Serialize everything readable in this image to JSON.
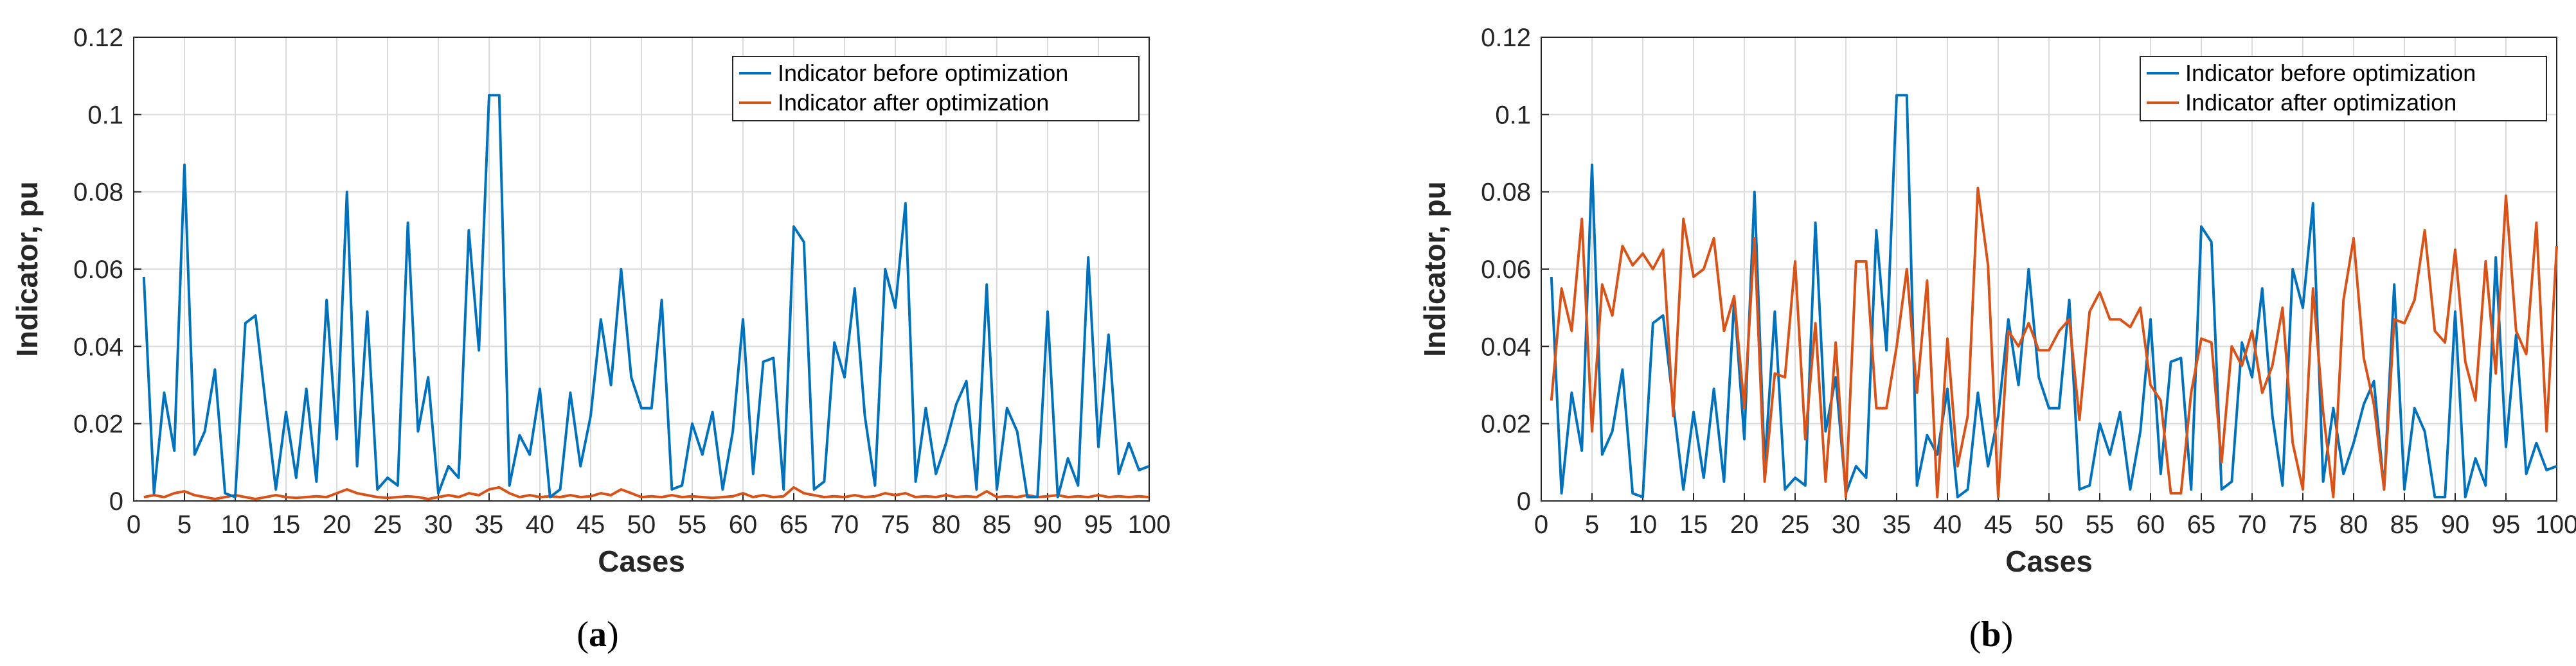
{
  "chart_data": [
    {
      "type": "line",
      "panel_label": "a",
      "xlabel": "Cases",
      "ylabel": "Indicator, pu",
      "xlim": [
        0,
        100
      ],
      "ylim": [
        0,
        0.12
      ],
      "xticks": [
        0,
        5,
        10,
        15,
        20,
        25,
        30,
        35,
        40,
        45,
        50,
        55,
        60,
        65,
        70,
        75,
        80,
        85,
        90,
        95,
        100
      ],
      "yticks": [
        0,
        0.02,
        0.04,
        0.06,
        0.08,
        0.1,
        0.12
      ],
      "ytick_labels": [
        "0",
        "0.02",
        "0.04",
        "0.06",
        "0.08",
        "0.1",
        "0.12"
      ],
      "grid": true,
      "legend_position": "top-right",
      "series": [
        {
          "name": "Indicator before optimization",
          "color": "#0072BD",
          "x": [
            1,
            2,
            3,
            4,
            5,
            6,
            7,
            8,
            9,
            10,
            11,
            12,
            13,
            14,
            15,
            16,
            17,
            18,
            19,
            20,
            21,
            22,
            23,
            24,
            25,
            26,
            27,
            28,
            29,
            30,
            31,
            32,
            33,
            34,
            35,
            36,
            37,
            38,
            39,
            40,
            41,
            42,
            43,
            44,
            45,
            46,
            47,
            48,
            49,
            50,
            51,
            52,
            53,
            54,
            55,
            56,
            57,
            58,
            59,
            60,
            61,
            62,
            63,
            64,
            65,
            66,
            67,
            68,
            69,
            70,
            71,
            72,
            73,
            74,
            75,
            76,
            77,
            78,
            79,
            80,
            81,
            82,
            83,
            84,
            85,
            86,
            87,
            88,
            89,
            90,
            91,
            92,
            93,
            94,
            95,
            96,
            97,
            98,
            99,
            100
          ],
          "values": [
            0.058,
            0.002,
            0.028,
            0.013,
            0.087,
            0.012,
            0.018,
            0.034,
            0.002,
            0.001,
            0.046,
            0.048,
            0.025,
            0.003,
            0.023,
            0.006,
            0.029,
            0.005,
            0.052,
            0.016,
            0.08,
            0.009,
            0.049,
            0.003,
            0.006,
            0.004,
            0.072,
            0.018,
            0.032,
            0.002,
            0.009,
            0.006,
            0.07,
            0.039,
            0.105,
            0.105,
            0.004,
            0.017,
            0.012,
            0.029,
            0.001,
            0.003,
            0.028,
            0.009,
            0.022,
            0.047,
            0.03,
            0.06,
            0.032,
            0.024,
            0.024,
            0.052,
            0.003,
            0.004,
            0.02,
            0.012,
            0.023,
            0.003,
            0.018,
            0.047,
            0.007,
            0.036,
            0.037,
            0.003,
            0.071,
            0.067,
            0.003,
            0.005,
            0.041,
            0.032,
            0.055,
            0.022,
            0.004,
            0.06,
            0.05,
            0.077,
            0.005,
            0.024,
            0.007,
            0.015,
            0.025,
            0.031,
            0.003,
            0.056,
            0.003,
            0.024,
            0.018,
            0.001,
            0.001,
            0.049,
            0.001,
            0.011,
            0.004,
            0.063,
            0.014,
            0.043,
            0.007,
            0.015,
            0.008,
            0.009
          ]
        },
        {
          "name": "Indicator after optimization",
          "color": "#D95319",
          "x": [
            1,
            2,
            3,
            4,
            5,
            6,
            7,
            8,
            9,
            10,
            11,
            12,
            13,
            14,
            15,
            16,
            17,
            18,
            19,
            20,
            21,
            22,
            23,
            24,
            25,
            26,
            27,
            28,
            29,
            30,
            31,
            32,
            33,
            34,
            35,
            36,
            37,
            38,
            39,
            40,
            41,
            42,
            43,
            44,
            45,
            46,
            47,
            48,
            49,
            50,
            51,
            52,
            53,
            54,
            55,
            56,
            57,
            58,
            59,
            60,
            61,
            62,
            63,
            64,
            65,
            66,
            67,
            68,
            69,
            70,
            71,
            72,
            73,
            74,
            75,
            76,
            77,
            78,
            79,
            80,
            81,
            82,
            83,
            84,
            85,
            86,
            87,
            88,
            89,
            90,
            91,
            92,
            93,
            94,
            95,
            96,
            97,
            98,
            99,
            100
          ],
          "values": [
            0.001,
            0.0015,
            0.001,
            0.002,
            0.0025,
            0.0015,
            0.001,
            0.0005,
            0.001,
            0.0015,
            0.001,
            0.0005,
            0.001,
            0.0015,
            0.001,
            0.0008,
            0.001,
            0.0012,
            0.001,
            0.002,
            0.003,
            0.002,
            0.0015,
            0.001,
            0.0008,
            0.001,
            0.0012,
            0.001,
            0.0005,
            0.001,
            0.0015,
            0.001,
            0.002,
            0.0015,
            0.003,
            0.0035,
            0.002,
            0.001,
            0.0015,
            0.001,
            0.0012,
            0.001,
            0.0015,
            0.001,
            0.0012,
            0.002,
            0.0015,
            0.003,
            0.002,
            0.001,
            0.0012,
            0.001,
            0.0015,
            0.001,
            0.0012,
            0.001,
            0.0008,
            0.001,
            0.0012,
            0.002,
            0.001,
            0.0015,
            0.001,
            0.0012,
            0.0035,
            0.002,
            0.0015,
            0.001,
            0.0012,
            0.001,
            0.0015,
            0.001,
            0.0012,
            0.002,
            0.0015,
            0.002,
            0.001,
            0.0012,
            0.001,
            0.0015,
            0.001,
            0.0012,
            0.001,
            0.0025,
            0.001,
            0.0012,
            0.001,
            0.0015,
            0.001,
            0.0012,
            0.0015,
            0.001,
            0.0012,
            0.001,
            0.0015,
            0.001,
            0.0012,
            0.001,
            0.0012,
            0.001
          ]
        }
      ]
    },
    {
      "type": "line",
      "panel_label": "b",
      "xlabel": "Cases",
      "ylabel": "Indicator, pu",
      "xlim": [
        0,
        100
      ],
      "ylim": [
        0,
        0.12
      ],
      "xticks": [
        0,
        5,
        10,
        15,
        20,
        25,
        30,
        35,
        40,
        45,
        50,
        55,
        60,
        65,
        70,
        75,
        80,
        85,
        90,
        95,
        100
      ],
      "yticks": [
        0,
        0.02,
        0.04,
        0.06,
        0.08,
        0.1,
        0.12
      ],
      "ytick_labels": [
        "0",
        "0.02",
        "0.04",
        "0.06",
        "0.08",
        "0.1",
        "0.12"
      ],
      "grid": true,
      "legend_position": "top-right",
      "series": [
        {
          "name": "Indicator before optimization",
          "color": "#0072BD",
          "x": [
            1,
            2,
            3,
            4,
            5,
            6,
            7,
            8,
            9,
            10,
            11,
            12,
            13,
            14,
            15,
            16,
            17,
            18,
            19,
            20,
            21,
            22,
            23,
            24,
            25,
            26,
            27,
            28,
            29,
            30,
            31,
            32,
            33,
            34,
            35,
            36,
            37,
            38,
            39,
            40,
            41,
            42,
            43,
            44,
            45,
            46,
            47,
            48,
            49,
            50,
            51,
            52,
            53,
            54,
            55,
            56,
            57,
            58,
            59,
            60,
            61,
            62,
            63,
            64,
            65,
            66,
            67,
            68,
            69,
            70,
            71,
            72,
            73,
            74,
            75,
            76,
            77,
            78,
            79,
            80,
            81,
            82,
            83,
            84,
            85,
            86,
            87,
            88,
            89,
            90,
            91,
            92,
            93,
            94,
            95,
            96,
            97,
            98,
            99,
            100
          ],
          "values": [
            0.058,
            0.002,
            0.028,
            0.013,
            0.087,
            0.012,
            0.018,
            0.034,
            0.002,
            0.001,
            0.046,
            0.048,
            0.025,
            0.003,
            0.023,
            0.006,
            0.029,
            0.005,
            0.052,
            0.016,
            0.08,
            0.009,
            0.049,
            0.003,
            0.006,
            0.004,
            0.072,
            0.018,
            0.032,
            0.002,
            0.009,
            0.006,
            0.07,
            0.039,
            0.105,
            0.105,
            0.004,
            0.017,
            0.012,
            0.029,
            0.001,
            0.003,
            0.028,
            0.009,
            0.022,
            0.047,
            0.03,
            0.06,
            0.032,
            0.024,
            0.024,
            0.052,
            0.003,
            0.004,
            0.02,
            0.012,
            0.023,
            0.003,
            0.018,
            0.047,
            0.007,
            0.036,
            0.037,
            0.003,
            0.071,
            0.067,
            0.003,
            0.005,
            0.041,
            0.032,
            0.055,
            0.022,
            0.004,
            0.06,
            0.05,
            0.077,
            0.005,
            0.024,
            0.007,
            0.015,
            0.025,
            0.031,
            0.003,
            0.056,
            0.003,
            0.024,
            0.018,
            0.001,
            0.001,
            0.049,
            0.001,
            0.011,
            0.004,
            0.063,
            0.014,
            0.043,
            0.007,
            0.015,
            0.008,
            0.009
          ]
        },
        {
          "name": "Indicator after optimization",
          "color": "#D95319",
          "x": [
            1,
            2,
            3,
            4,
            5,
            6,
            7,
            8,
            9,
            10,
            11,
            12,
            13,
            14,
            15,
            16,
            17,
            18,
            19,
            20,
            21,
            22,
            23,
            24,
            25,
            26,
            27,
            28,
            29,
            30,
            31,
            32,
            33,
            34,
            35,
            36,
            37,
            38,
            39,
            40,
            41,
            42,
            43,
            44,
            45,
            46,
            47,
            48,
            49,
            50,
            51,
            52,
            53,
            54,
            55,
            56,
            57,
            58,
            59,
            60,
            61,
            62,
            63,
            64,
            65,
            66,
            67,
            68,
            69,
            70,
            71,
            72,
            73,
            74,
            75,
            76,
            77,
            78,
            79,
            80,
            81,
            82,
            83,
            84,
            85,
            86,
            87,
            88,
            89,
            90,
            91,
            92,
            93,
            94,
            95,
            96,
            97,
            98,
            99,
            100
          ],
          "values": [
            0.026,
            0.055,
            0.044,
            0.073,
            0.018,
            0.056,
            0.048,
            0.066,
            0.061,
            0.064,
            0.06,
            0.065,
            0.022,
            0.073,
            0.058,
            0.06,
            0.068,
            0.044,
            0.053,
            0.024,
            0.068,
            0.005,
            0.033,
            0.032,
            0.062,
            0.016,
            0.046,
            0.005,
            0.041,
            0.001,
            0.062,
            0.062,
            0.024,
            0.024,
            0.04,
            0.06,
            0.028,
            0.057,
            0.001,
            0.042,
            0.009,
            0.022,
            0.081,
            0.061,
            0.001,
            0.044,
            0.04,
            0.046,
            0.039,
            0.039,
            0.044,
            0.047,
            0.021,
            0.049,
            0.054,
            0.047,
            0.047,
            0.045,
            0.05,
            0.03,
            0.026,
            0.002,
            0.002,
            0.028,
            0.042,
            0.041,
            0.01,
            0.04,
            0.035,
            0.044,
            0.028,
            0.035,
            0.05,
            0.015,
            0.003,
            0.055,
            0.023,
            0.001,
            0.052,
            0.068,
            0.037,
            0.025,
            0.003,
            0.047,
            0.046,
            0.052,
            0.07,
            0.044,
            0.041,
            0.065,
            0.036,
            0.026,
            0.062,
            0.033,
            0.079,
            0.044,
            0.038,
            0.072,
            0.018,
            0.066
          ]
        }
      ]
    }
  ]
}
